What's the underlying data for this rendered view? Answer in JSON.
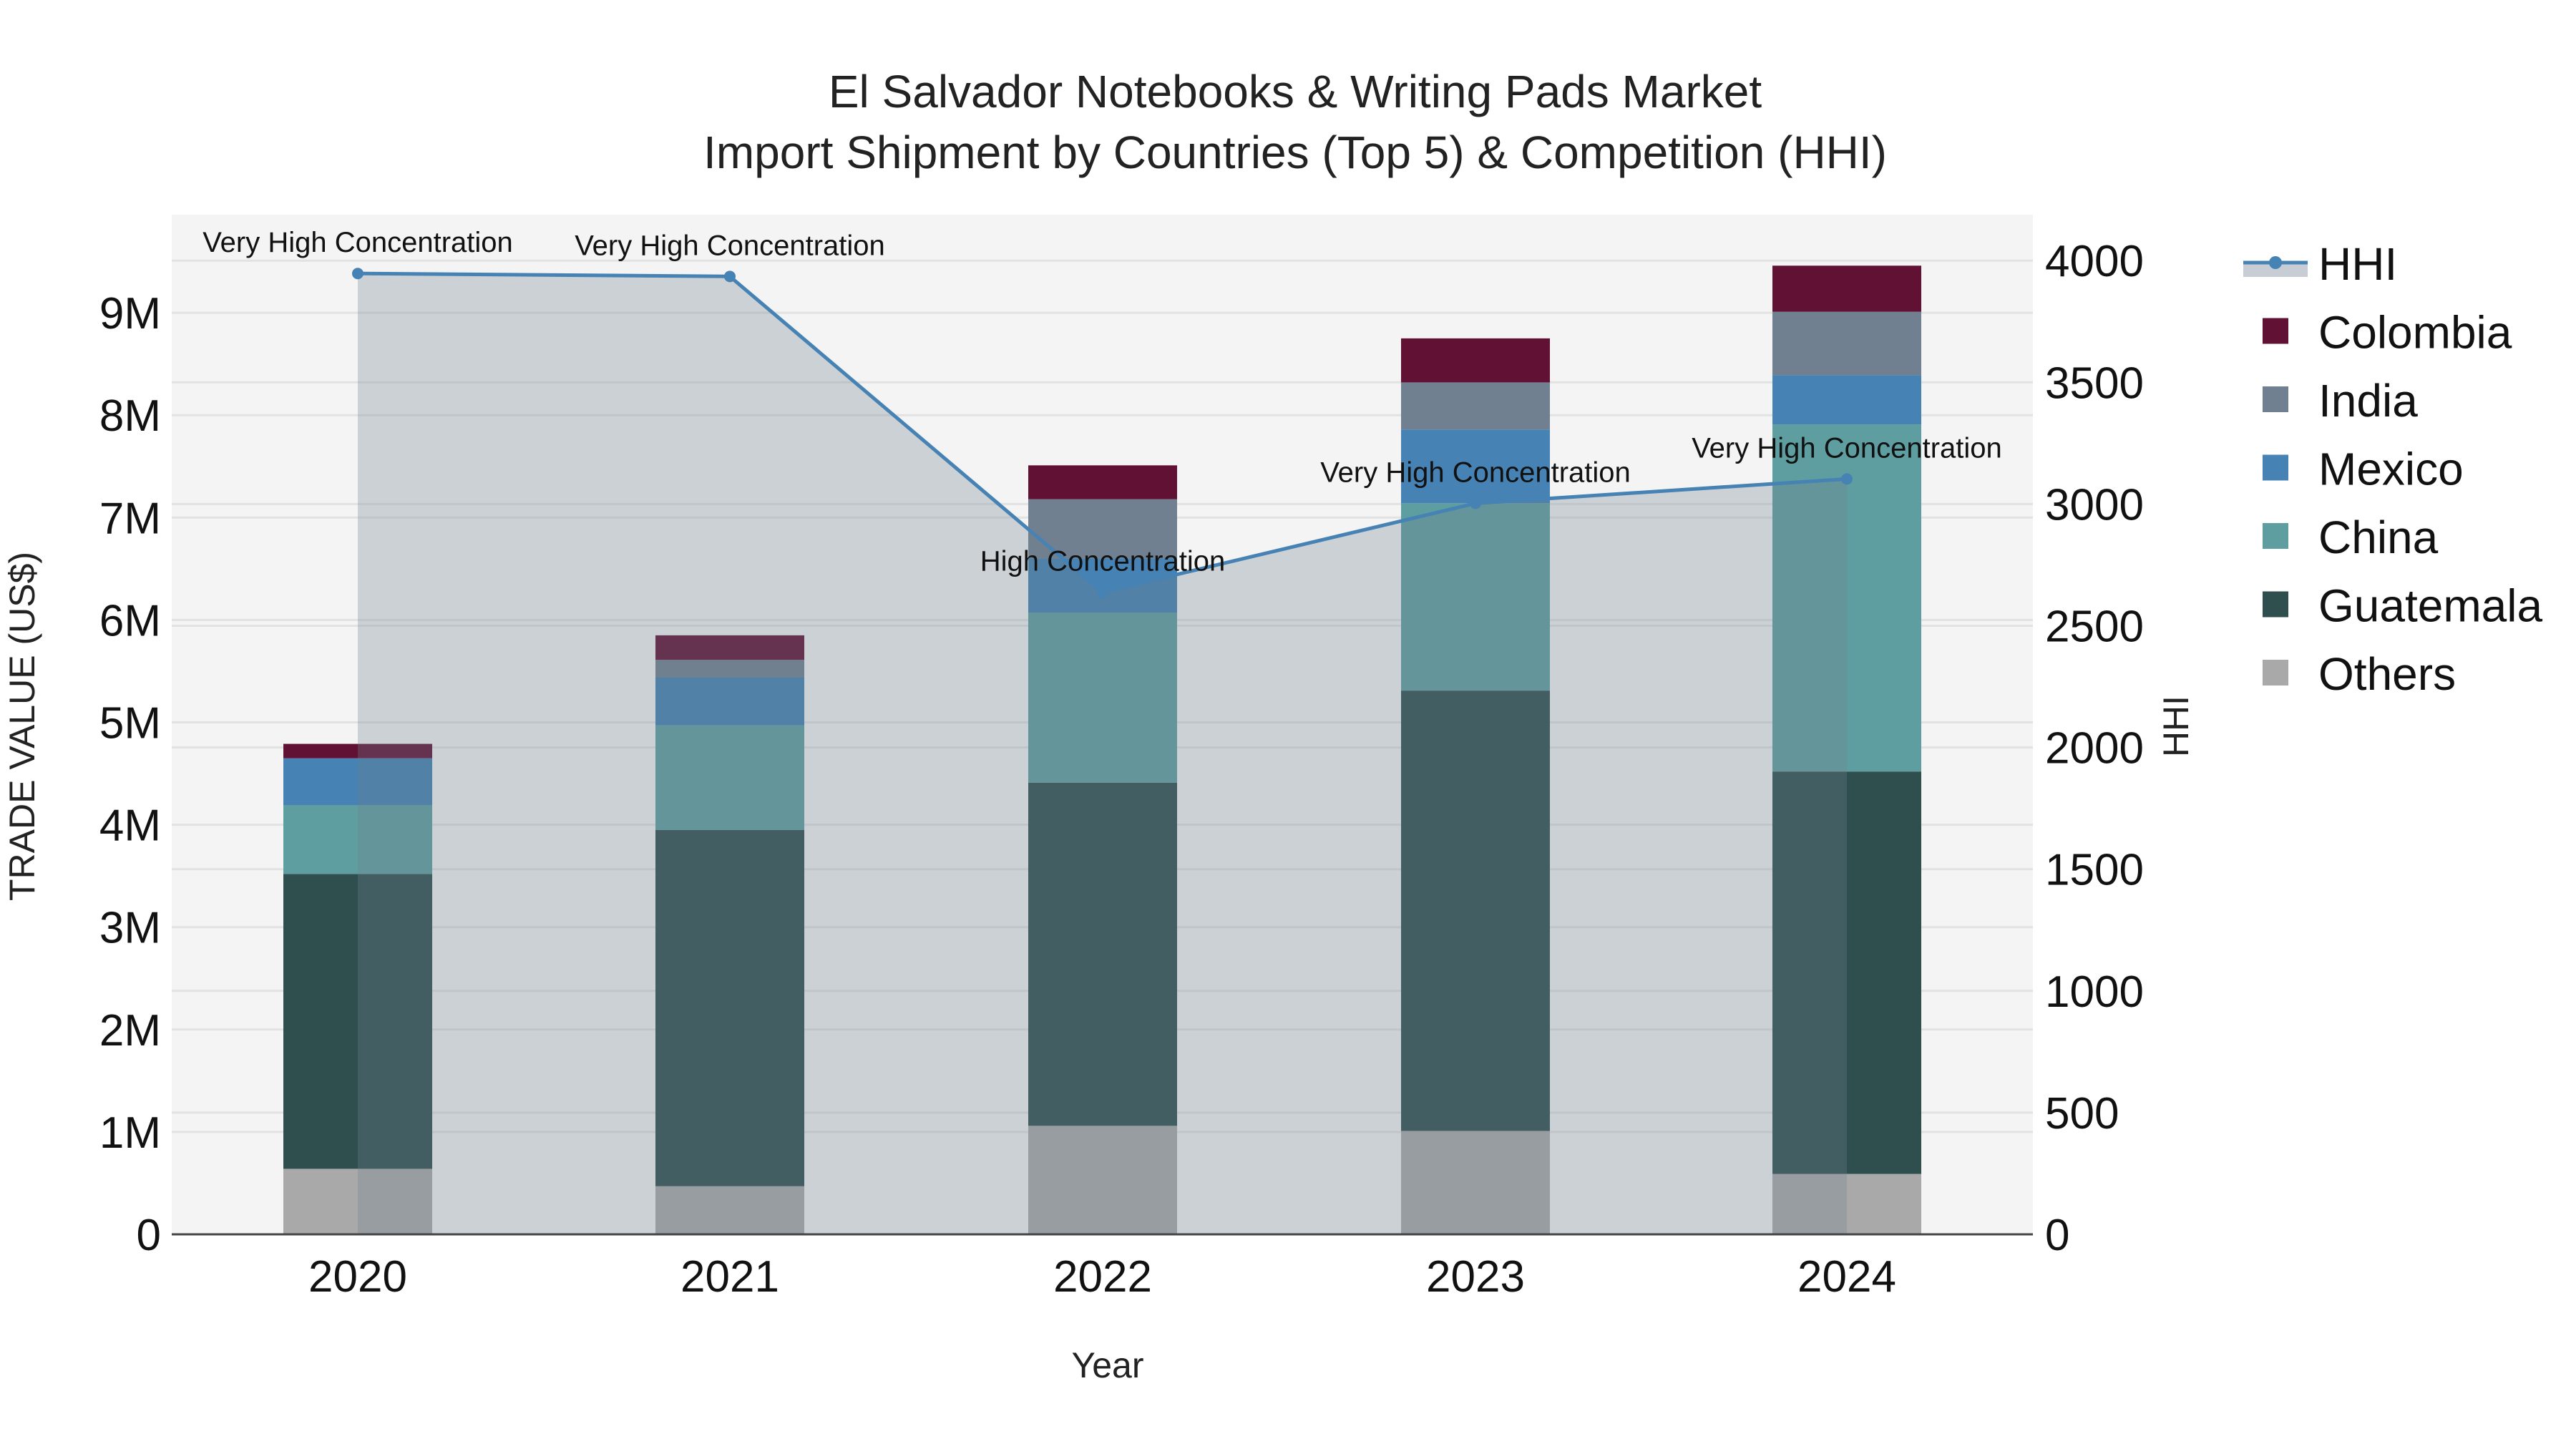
{
  "chart_data": {
    "type": "bar",
    "stacked": true,
    "title": "El Salvador Notebooks & Writing Pads Market",
    "subtitle": "Import Shipment by Countries (Top 5) & Competition (HHI)",
    "xlabel": "Year",
    "ylabel": "TRADE VALUE (US$)",
    "y2label": "HHI",
    "categories": [
      "2020",
      "2021",
      "2022",
      "2023",
      "2024"
    ],
    "ylim": [
      0,
      9500000
    ],
    "y2lim": [
      0,
      4190
    ],
    "yticks": [
      0,
      1000000,
      2000000,
      3000000,
      4000000,
      5000000,
      6000000,
      7000000,
      8000000,
      9000000
    ],
    "ytick_labels": [
      "0",
      "1M",
      "2M",
      "3M",
      "4M",
      "5M",
      "6M",
      "7M",
      "8M",
      "9M"
    ],
    "y2ticks": [
      0,
      500,
      1000,
      1500,
      2000,
      2500,
      3000,
      3500,
      4000
    ],
    "y2tick_labels": [
      "0",
      "500",
      "1000",
      "1500",
      "2000",
      "2500",
      "3000",
      "3500",
      "4000"
    ],
    "grid": true,
    "legend_position": "right",
    "series": [
      {
        "name": "Others",
        "color": "#A9A9A9",
        "values": [
          640000,
          470000,
          1060000,
          1010000,
          590000
        ]
      },
      {
        "name": "Guatemala",
        "color": "#2F4F4F",
        "values": [
          2880000,
          3480000,
          3350000,
          4300000,
          3930000
        ]
      },
      {
        "name": "China",
        "color": "#5F9EA0",
        "values": [
          670000,
          1020000,
          1660000,
          1830000,
          3390000
        ]
      },
      {
        "name": "Mexico",
        "color": "#4682B4",
        "values": [
          460000,
          470000,
          530000,
          720000,
          480000
        ]
      },
      {
        "name": "India",
        "color": "#708090",
        "values": [
          0,
          170000,
          580000,
          460000,
          620000
        ]
      },
      {
        "name": "Colombia",
        "color": "#611134",
        "values": [
          140000,
          240000,
          330000,
          430000,
          450000
        ]
      }
    ],
    "line_series": {
      "name": "HHI",
      "axis": "y2",
      "color": "#4682B4",
      "fill": "tozeroy",
      "values": [
        3947,
        3935,
        2638,
        3003,
        3103
      ],
      "annotations": [
        "Very High Concentration",
        "Very High Concentration",
        "High Concentration",
        "Very High Concentration",
        "Very High Concentration"
      ]
    },
    "legend": [
      "HHI",
      "Colombia",
      "India",
      "Mexico",
      "China",
      "Guatemala",
      "Others"
    ]
  },
  "colors": {
    "plot_background": "#F4F4F4",
    "grid": "#E2E2E2",
    "hhi_fill": "rgba(112,128,144,0.3)",
    "hhi_line": "#4682B4"
  }
}
